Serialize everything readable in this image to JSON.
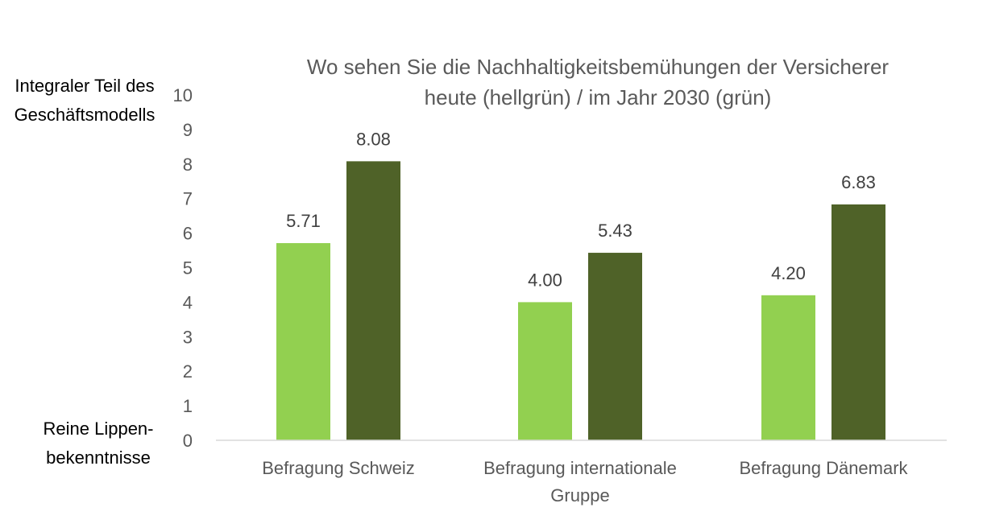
{
  "chart_data": {
    "type": "bar",
    "title": "Wo sehen Sie die Nachhaltigkeitsbemühungen der Versicherer heute (hellgrün) / im Jahr 2030 (grün)",
    "title_lines": [
      "Wo sehen Sie die Nachhaltigkeitsbemühungen der Versicherer",
      "heute (hellgrün) / im Jahr 2030 (grün)"
    ],
    "top_label_lines": [
      "Integraler Teil des",
      "Geschäftsmodells"
    ],
    "bottom_label_lines": [
      "Reine Lippen-",
      "bekenntnisse"
    ],
    "categories": [
      {
        "lines": [
          "Befragung Schweiz"
        ]
      },
      {
        "lines": [
          "Befragung internationale",
          "Gruppe"
        ]
      },
      {
        "lines": [
          "Befragung Dänemark"
        ]
      }
    ],
    "series": [
      {
        "key": "heute",
        "values": [
          5.71,
          4.0,
          4.2
        ],
        "labels": [
          "5.71",
          "4.00",
          "4.20"
        ],
        "color": "#92d050"
      },
      {
        "key": "2030",
        "values": [
          8.08,
          5.43,
          6.83
        ],
        "labels": [
          "8.08",
          "5.43",
          "6.83"
        ],
        "color": "#4f6228"
      }
    ],
    "ylim": [
      0,
      10
    ],
    "yticks": [
      "0",
      "1",
      "2",
      "3",
      "4",
      "5",
      "6",
      "7",
      "8",
      "9",
      "10"
    ],
    "grid": false,
    "legend": "none"
  }
}
